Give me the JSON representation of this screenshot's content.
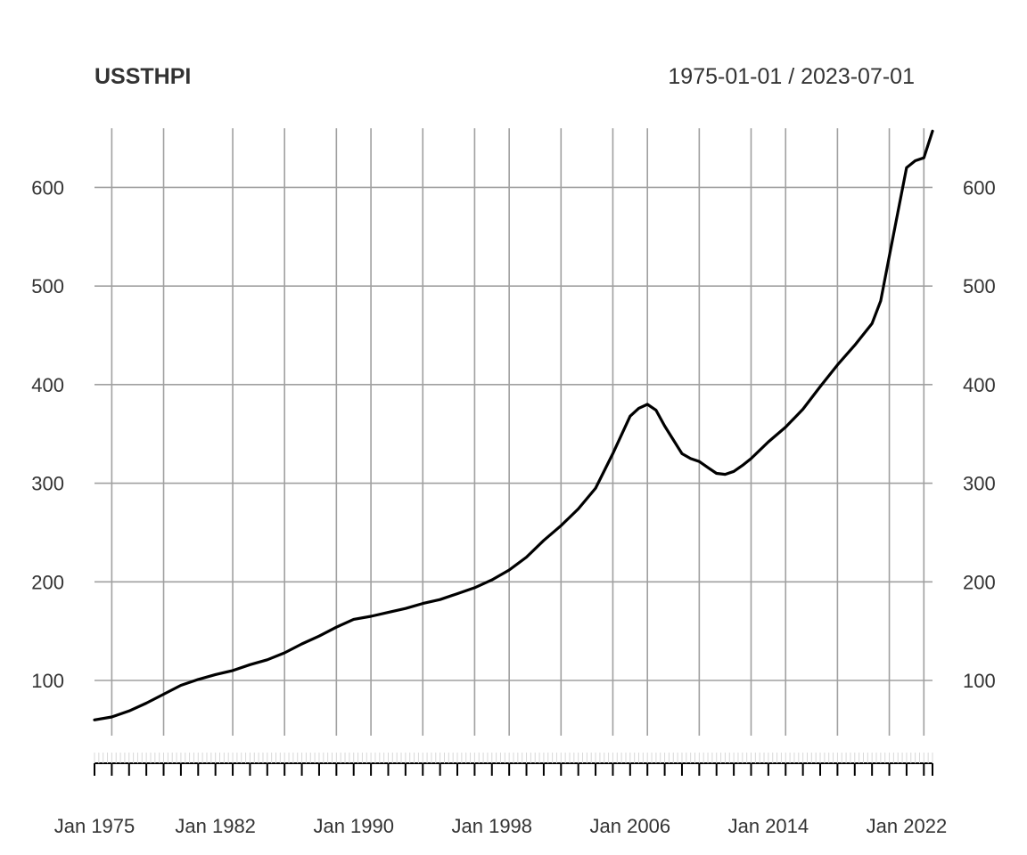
{
  "chart_data": {
    "type": "line",
    "title": "USSTHPI",
    "subtitle": "1975-01-01 / 2023-07-01",
    "xlabel": "",
    "ylabel": "",
    "x_range": [
      "1975-01-01",
      "2023-07-01"
    ],
    "ylim": [
      44,
      660
    ],
    "grid": true,
    "legend": "none",
    "line_color": "#000000",
    "grid_color": "#a0a0a0",
    "y_ticks": [
      100,
      200,
      300,
      400,
      500,
      600
    ],
    "x_tick_labels": [
      {
        "date": "1975-01-01",
        "label": "Jan 1975"
      },
      {
        "date": "1982-01-01",
        "label": "Jan 1982"
      },
      {
        "date": "1990-01-01",
        "label": "Jan 1990"
      },
      {
        "date": "1998-01-01",
        "label": "Jan 1998"
      },
      {
        "date": "2006-01-01",
        "label": "Jan 2006"
      },
      {
        "date": "2014-01-01",
        "label": "Jan 2014"
      },
      {
        "date": "2022-01-01",
        "label": "Jan 2022"
      }
    ],
    "x_gridline_years": [
      1976,
      1979,
      1983,
      1986,
      1989,
      1991,
      1994,
      1997,
      1999,
      2002,
      2005,
      2007,
      2010,
      2013,
      2015,
      2018,
      2021,
      2023
    ],
    "series": [
      {
        "values": [
          [
            "1975-01-01",
            60
          ],
          [
            "1976-01-01",
            63
          ],
          [
            "1977-01-01",
            69
          ],
          [
            "1978-01-01",
            77
          ],
          [
            "1979-01-01",
            86
          ],
          [
            "1980-01-01",
            95
          ],
          [
            "1981-01-01",
            101
          ],
          [
            "1982-01-01",
            106
          ],
          [
            "1983-01-01",
            110
          ],
          [
            "1984-01-01",
            116
          ],
          [
            "1985-01-01",
            121
          ],
          [
            "1986-01-01",
            128
          ],
          [
            "1987-01-01",
            137
          ],
          [
            "1988-01-01",
            145
          ],
          [
            "1989-01-01",
            154
          ],
          [
            "1990-01-01",
            162
          ],
          [
            "1991-01-01",
            165
          ],
          [
            "1992-01-01",
            169
          ],
          [
            "1993-01-01",
            173
          ],
          [
            "1994-01-01",
            178
          ],
          [
            "1995-01-01",
            182
          ],
          [
            "1996-01-01",
            188
          ],
          [
            "1997-01-01",
            194
          ],
          [
            "1998-01-01",
            202
          ],
          [
            "1999-01-01",
            212
          ],
          [
            "2000-01-01",
            225
          ],
          [
            "2001-01-01",
            242
          ],
          [
            "2002-01-01",
            257
          ],
          [
            "2003-01-01",
            274
          ],
          [
            "2004-01-01",
            295
          ],
          [
            "2005-01-01",
            330
          ],
          [
            "2006-01-01",
            368
          ],
          [
            "2006-07-01",
            376
          ],
          [
            "2007-01-01",
            380
          ],
          [
            "2007-07-01",
            374
          ],
          [
            "2008-01-01",
            358
          ],
          [
            "2008-07-01",
            344
          ],
          [
            "2009-01-01",
            330
          ],
          [
            "2009-07-01",
            325
          ],
          [
            "2010-01-01",
            322
          ],
          [
            "2010-07-01",
            316
          ],
          [
            "2011-01-01",
            310
          ],
          [
            "2011-07-01",
            309
          ],
          [
            "2012-01-01",
            312
          ],
          [
            "2012-07-01",
            318
          ],
          [
            "2013-01-01",
            325
          ],
          [
            "2014-01-01",
            342
          ],
          [
            "2015-01-01",
            357
          ],
          [
            "2016-01-01",
            375
          ],
          [
            "2017-01-01",
            398
          ],
          [
            "2018-01-01",
            420
          ],
          [
            "2019-01-01",
            440
          ],
          [
            "2020-01-01",
            462
          ],
          [
            "2020-07-01",
            485
          ],
          [
            "2021-01-01",
            530
          ],
          [
            "2021-07-01",
            575
          ],
          [
            "2022-01-01",
            620
          ],
          [
            "2022-07-01",
            627
          ],
          [
            "2023-01-01",
            630
          ],
          [
            "2023-07-01",
            657
          ]
        ]
      }
    ]
  }
}
